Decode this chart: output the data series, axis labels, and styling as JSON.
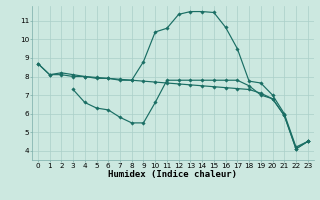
{
  "title": "",
  "xlabel": "Humidex (Indice chaleur)",
  "ylabel": "",
  "background_color": "#cce8e0",
  "grid_color": "#aacfc8",
  "line_color": "#1a6e64",
  "series1_x": [
    0,
    1,
    2,
    3,
    4,
    5,
    6,
    7,
    8,
    9,
    10,
    11,
    12,
    13,
    14,
    15,
    16,
    17,
    18,
    19,
    20,
    21,
    22,
    23
  ],
  "series1_y": [
    8.7,
    8.1,
    8.2,
    8.1,
    8.0,
    7.9,
    7.9,
    7.8,
    7.8,
    8.8,
    10.4,
    10.6,
    11.35,
    11.5,
    11.5,
    11.45,
    10.65,
    9.5,
    7.75,
    7.65,
    7.0,
    6.0,
    4.2,
    4.5
  ],
  "series2_x": [
    3,
    4,
    5,
    6,
    7,
    8,
    9,
    10,
    11,
    12,
    13,
    14,
    15,
    16,
    17,
    18,
    19,
    20,
    21,
    22,
    23
  ],
  "series2_y": [
    7.3,
    6.6,
    6.3,
    6.2,
    5.8,
    5.5,
    5.5,
    6.6,
    7.8,
    7.8,
    7.8,
    7.8,
    7.8,
    7.8,
    7.8,
    7.5,
    7.0,
    6.8,
    5.9,
    4.1,
    4.5
  ],
  "series3_x": [
    0,
    1,
    2,
    3,
    4,
    5,
    6,
    7,
    8,
    9,
    10,
    11,
    12,
    13,
    14,
    15,
    16,
    17,
    18,
    19,
    20,
    21,
    22,
    23
  ],
  "series3_y": [
    8.7,
    8.1,
    8.1,
    8.0,
    8.0,
    7.95,
    7.9,
    7.85,
    7.8,
    7.75,
    7.7,
    7.65,
    7.6,
    7.55,
    7.5,
    7.45,
    7.4,
    7.35,
    7.3,
    7.1,
    6.8,
    5.9,
    4.1,
    4.5
  ],
  "xlim": [
    -0.5,
    23.5
  ],
  "ylim": [
    3.5,
    11.8
  ],
  "xticks": [
    0,
    1,
    2,
    3,
    4,
    5,
    6,
    7,
    8,
    9,
    10,
    11,
    12,
    13,
    14,
    15,
    16,
    17,
    18,
    19,
    20,
    21,
    22,
    23
  ],
  "yticks": [
    4,
    5,
    6,
    7,
    8,
    9,
    10,
    11
  ],
  "tick_fontsize": 5.2,
  "xlabel_fontsize": 6.5,
  "markersize": 1.8,
  "linewidth": 0.85
}
